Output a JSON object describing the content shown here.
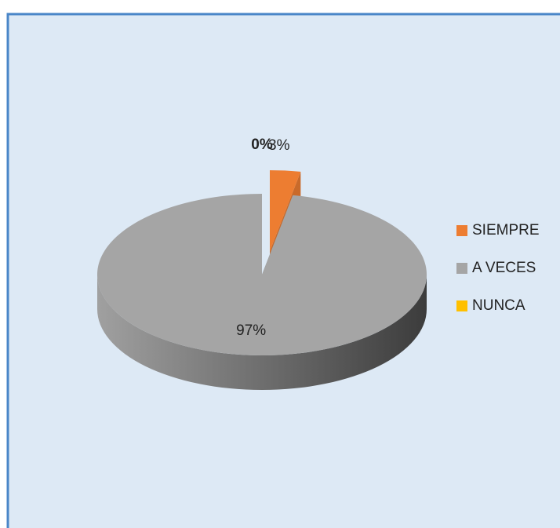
{
  "chart_data": {
    "type": "pie3d",
    "categories": [
      "SIEMPRE",
      "A VECES",
      "NUNCA"
    ],
    "values": [
      3,
      97,
      0
    ],
    "value_labels": [
      "3%",
      "97%",
      "0%"
    ],
    "colors": [
      "#ed7d31",
      "#a5a5a5",
      "#ffc000"
    ],
    "legend": "right"
  }
}
